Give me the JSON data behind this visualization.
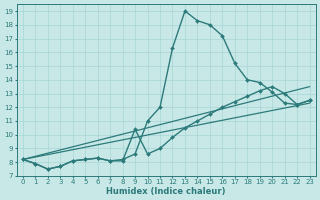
{
  "xlabel": "Humidex (Indice chaleur)",
  "bg_color": "#c8e8e8",
  "line_color": "#2d7a7a",
  "grid_color": "#a8d4d4",
  "xlim": [
    -0.5,
    23.5
  ],
  "ylim": [
    7,
    19.5
  ],
  "xticks": [
    0,
    1,
    2,
    3,
    4,
    5,
    6,
    7,
    8,
    9,
    10,
    11,
    12,
    13,
    14,
    15,
    16,
    17,
    18,
    19,
    20,
    21,
    22,
    23
  ],
  "yticks": [
    7,
    8,
    9,
    10,
    11,
    12,
    13,
    14,
    15,
    16,
    17,
    18,
    19
  ],
  "series": [
    {
      "x": [
        0,
        1,
        2,
        3,
        4,
        5,
        6,
        7,
        8,
        9,
        10,
        11,
        12,
        13,
        14,
        15,
        16,
        17,
        18,
        19,
        20,
        21,
        22,
        23
      ],
      "y": [
        8.2,
        7.9,
        7.5,
        7.7,
        8.1,
        8.2,
        8.3,
        8.1,
        8.2,
        8.6,
        11.0,
        12.0,
        16.3,
        19.0,
        18.3,
        18.0,
        17.2,
        15.2,
        14.0,
        13.8,
        13.1,
        12.3,
        12.2,
        12.5
      ],
      "use_marker": true,
      "linewidth": 1.0
    },
    {
      "x": [
        0,
        1,
        2,
        3,
        4,
        5,
        6,
        7,
        8,
        9,
        10,
        11,
        12,
        13,
        14,
        15,
        16,
        17,
        18,
        19,
        20,
        21,
        22,
        23
      ],
      "y": [
        8.2,
        7.9,
        7.5,
        7.7,
        8.1,
        8.2,
        8.3,
        8.1,
        8.1,
        10.4,
        8.6,
        9.0,
        9.8,
        10.5,
        11.0,
        11.5,
        12.0,
        12.4,
        12.8,
        13.2,
        13.5,
        13.0,
        12.2,
        12.5
      ],
      "use_marker": true,
      "linewidth": 1.0
    },
    {
      "x": [
        0,
        23
      ],
      "y": [
        8.2,
        13.5
      ],
      "use_marker": false,
      "linewidth": 0.9
    },
    {
      "x": [
        0,
        23
      ],
      "y": [
        8.2,
        12.3
      ],
      "use_marker": false,
      "linewidth": 0.9
    }
  ]
}
